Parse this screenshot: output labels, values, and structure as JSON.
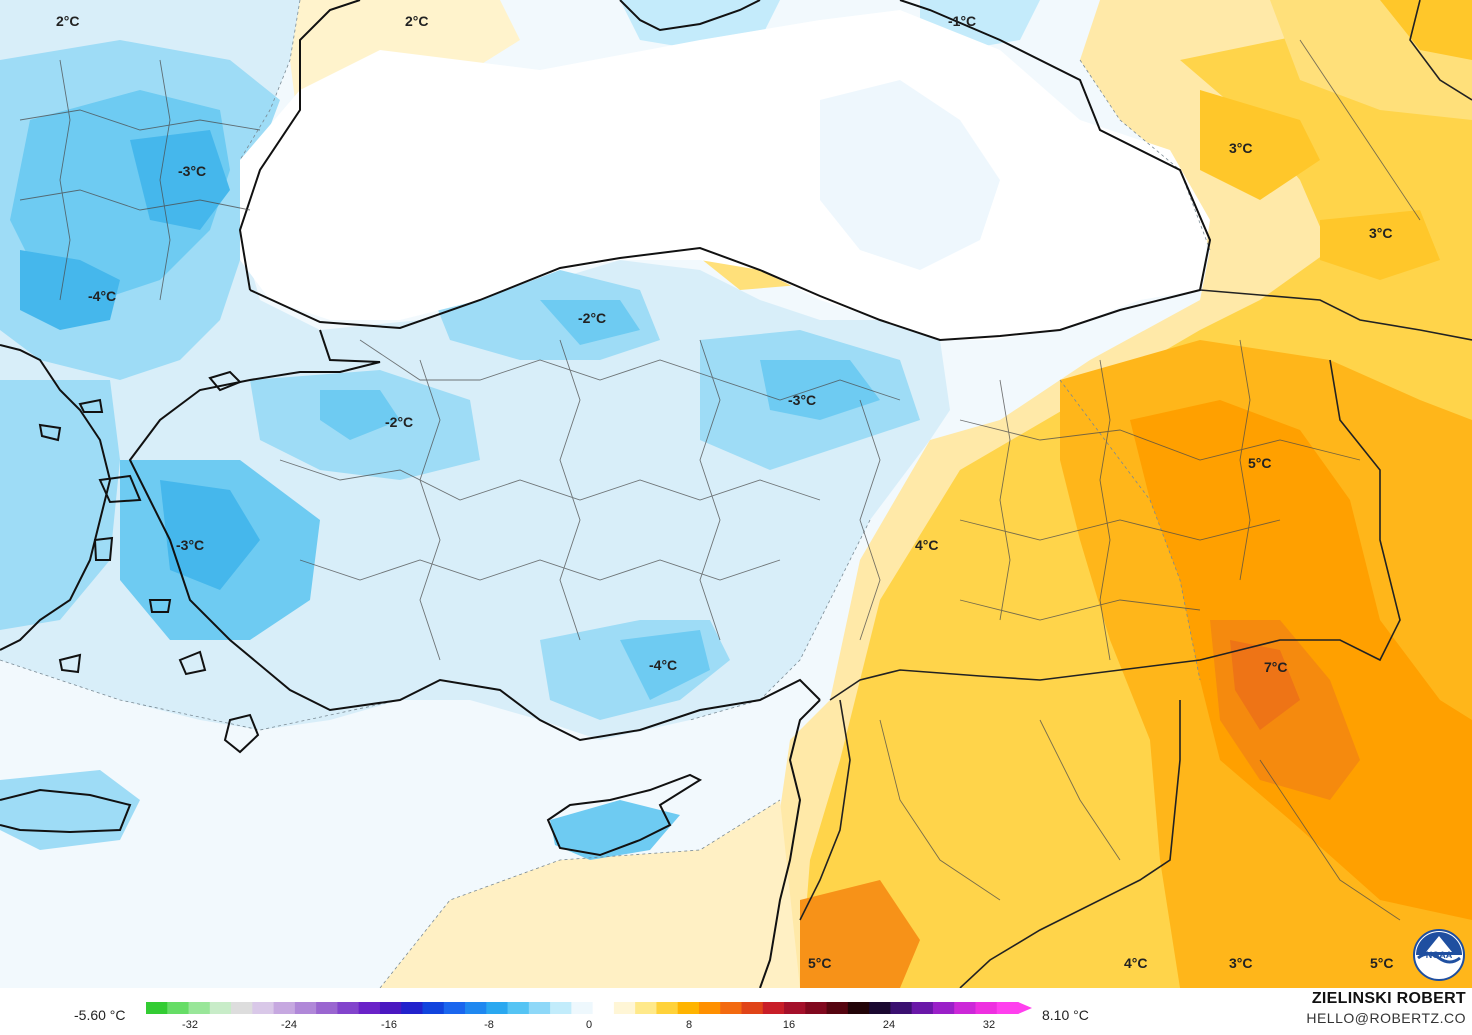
{
  "map": {
    "labels": [
      {
        "text": "2°C"
      },
      {
        "text": "2°C"
      },
      {
        "text": "-1°C"
      },
      {
        "text": "-3°C"
      },
      {
        "text": "-4°C"
      },
      {
        "text": "-2°C"
      },
      {
        "text": "-2°C"
      },
      {
        "text": "-3°C"
      },
      {
        "text": "-3°C"
      },
      {
        "text": "-4°C"
      },
      {
        "text": "4°C"
      },
      {
        "text": "5°C"
      },
      {
        "text": "3°C"
      },
      {
        "text": "3°C"
      },
      {
        "text": "7°C"
      },
      {
        "text": "5°C"
      },
      {
        "text": "4°C"
      },
      {
        "text": "3°C"
      },
      {
        "text": "5°C"
      }
    ]
  },
  "legend": {
    "min_label": "-5.60 °C",
    "max_label": "8.10 °C",
    "ticks": [
      "-32",
      "-24",
      "-16",
      "-8",
      "0",
      "8",
      "16",
      "24",
      "32"
    ],
    "colors": [
      "#33cc33",
      "#66dd66",
      "#99e699",
      "#c8ecc8",
      "#dddddd",
      "#d9c8e8",
      "#c6a8e0",
      "#b088d8",
      "#9a66d0",
      "#8244cc",
      "#6a22c8",
      "#4a18c0",
      "#2222cc",
      "#1144dd",
      "#1a66ee",
      "#1f88f0",
      "#2aa8f0",
      "#55c4f4",
      "#8ed8f8",
      "#c2ecfb",
      "#eef8fd",
      "#ffffff",
      "#fff6d6",
      "#ffe98a",
      "#ffd23a",
      "#ffb400",
      "#ff9000",
      "#f36a10",
      "#e04418",
      "#c81e28",
      "#a4102a",
      "#80081e",
      "#550510",
      "#220408",
      "#1a0830",
      "#3a1070",
      "#6a18a8",
      "#9a20c8",
      "#cc28d8",
      "#ee30e0",
      "#ff40ee"
    ]
  },
  "branding": {
    "author": "ZIELINSKI ROBERT",
    "email": "HELLO@ROBERTZ.CO",
    "logo_text": "NOAA"
  }
}
